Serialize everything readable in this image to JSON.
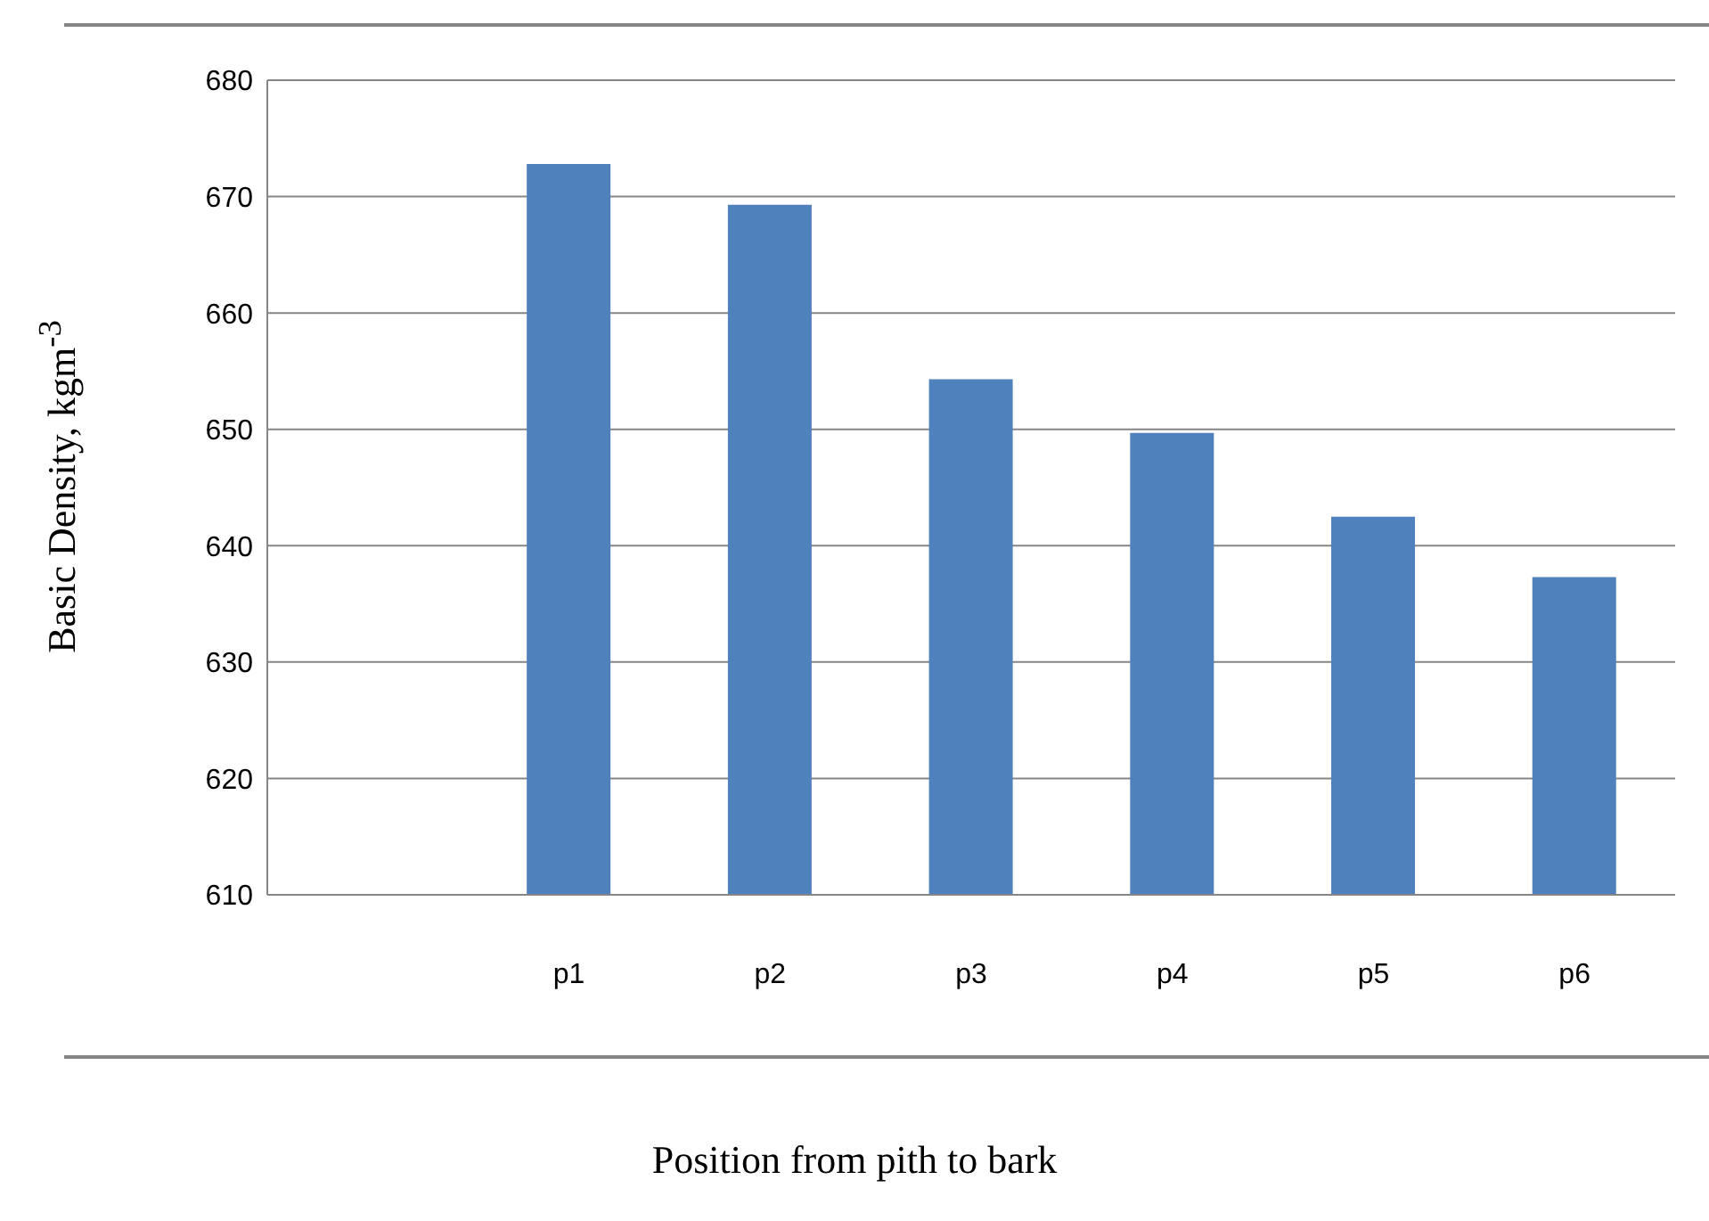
{
  "chart_data": {
    "type": "bar",
    "xlabel": "Position from pith to bark",
    "ylabel": "Basic Density, kgm$^{-3}$",
    "categories": [
      null,
      "p1",
      "p2",
      "p3",
      "p4",
      "p5",
      "p6"
    ],
    "values": [
      null,
      672.8,
      669.3,
      654.3,
      649.7,
      642.5,
      637.3
    ],
    "color": "#4f81bd",
    "ylim": [
      610,
      680
    ],
    "yticks": [
      610,
      620,
      630,
      640,
      650,
      660,
      670,
      680
    ],
    "grid": "y"
  }
}
